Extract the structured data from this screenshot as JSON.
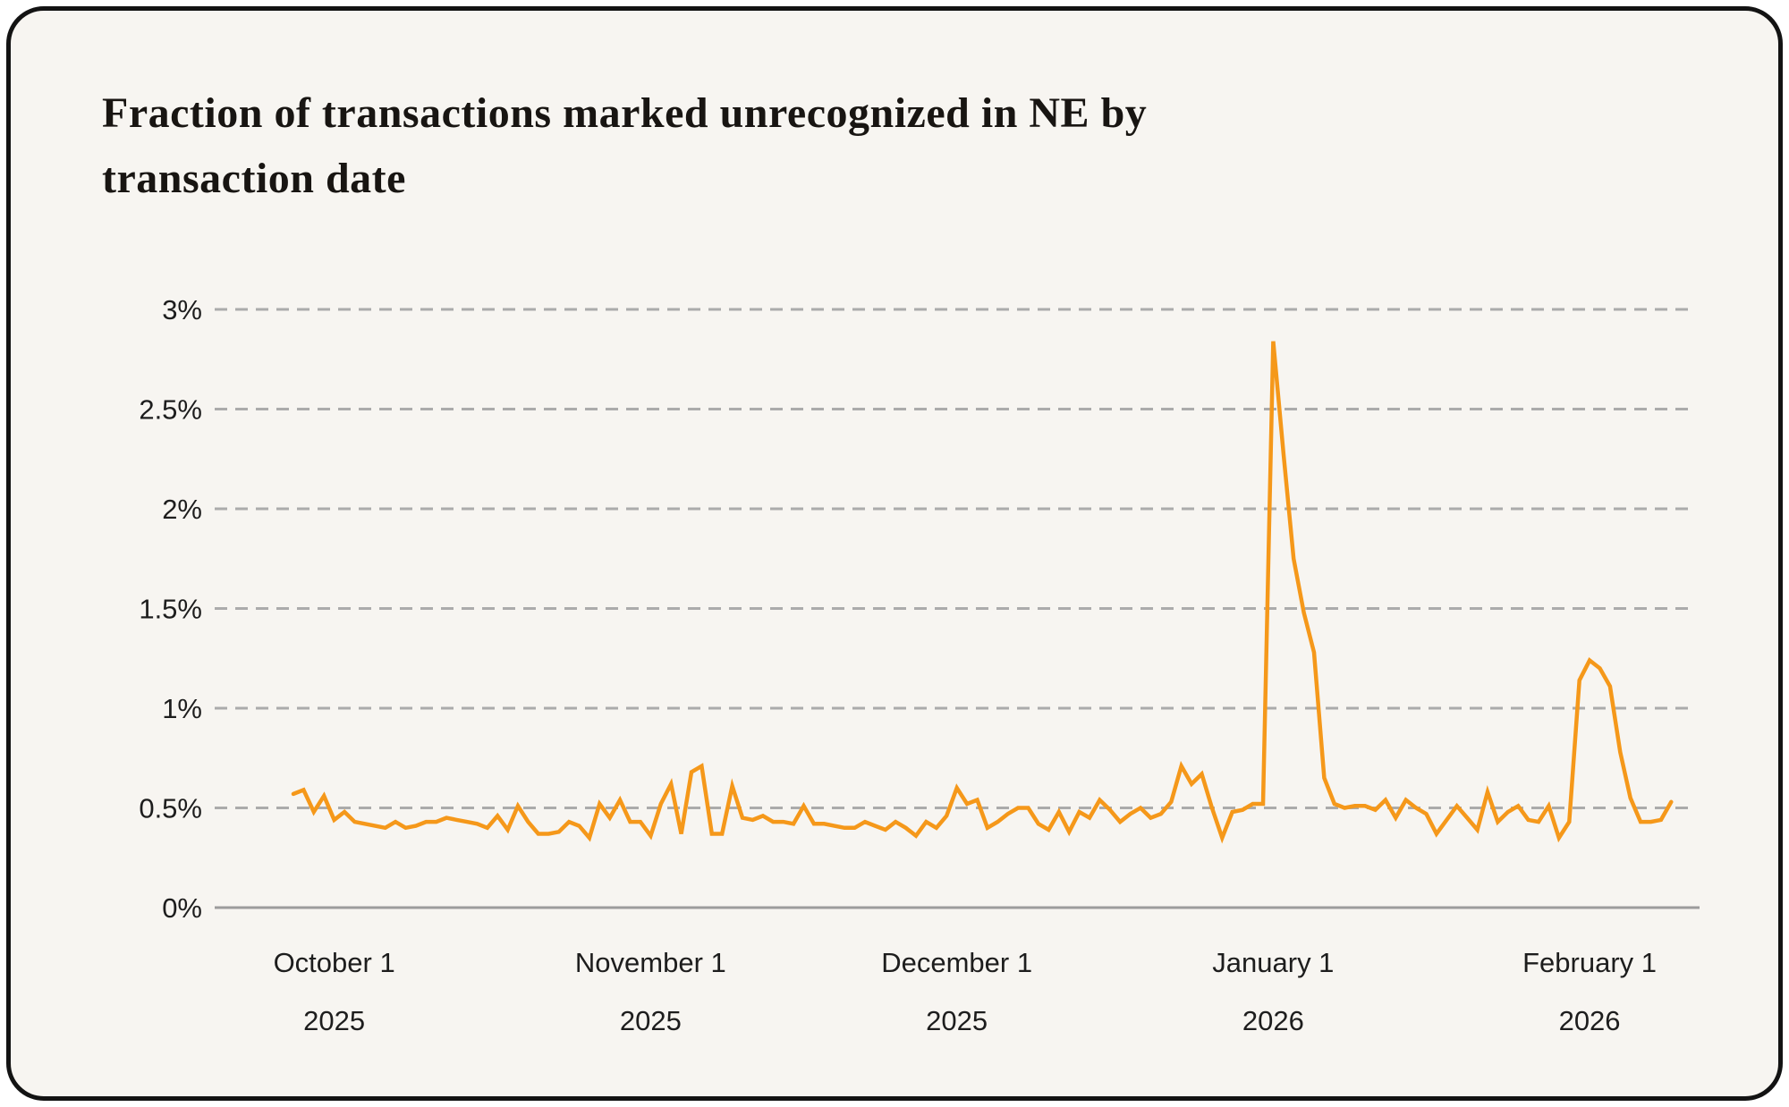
{
  "card": {
    "title_line1": "Fraction of transactions marked unrecognized in NE by",
    "title_line2": "transaction date"
  },
  "colors": {
    "page_bg": "#FFFFFF",
    "card_bg": "#F7F5F1",
    "card_border": "#131313",
    "title_text": "#181512",
    "tick_text": "#1D1D1D",
    "grid_dashed": "#ABABAB",
    "axis_solid": "#9C9C9C",
    "line": "#F5981A"
  },
  "chart_data": {
    "type": "line",
    "title": "Fraction of transactions marked unrecognized in NE by transaction date",
    "unit": "%",
    "grid": "horizontal dashed, zero axis solid",
    "legend": "none",
    "ylim": [
      0,
      3.1
    ],
    "y_ticks": [
      {
        "value": 0,
        "label": "0%"
      },
      {
        "value": 0.5,
        "label": "0.5%"
      },
      {
        "value": 1,
        "label": "1%"
      },
      {
        "value": 1.5,
        "label": "1.5%"
      },
      {
        "value": 2,
        "label": "2%"
      },
      {
        "value": 2.5,
        "label": "2.5%"
      },
      {
        "value": 3,
        "label": "3%"
      }
    ],
    "x_ticks": [
      {
        "day_index": 4,
        "month_label": "October 1",
        "year_label": "2025"
      },
      {
        "day_index": 35,
        "month_label": "November 1",
        "year_label": "2025"
      },
      {
        "day_index": 65,
        "month_label": "December 1",
        "year_label": "2025"
      },
      {
        "day_index": 96,
        "month_label": "January 1",
        "year_label": "2026"
      },
      {
        "day_index": 127,
        "month_label": "February 1",
        "year_label": "2026"
      }
    ],
    "series": [
      {
        "name": "fraction of transactions marked unrecognized",
        "cadence": "daily",
        "values": [
          0.57,
          0.59,
          0.48,
          0.56,
          0.44,
          0.48,
          0.43,
          0.42,
          0.41,
          0.4,
          0.43,
          0.4,
          0.41,
          0.43,
          0.43,
          0.45,
          0.44,
          0.43,
          0.42,
          0.4,
          0.46,
          0.39,
          0.51,
          0.43,
          0.37,
          0.37,
          0.38,
          0.43,
          0.41,
          0.35,
          0.52,
          0.45,
          0.54,
          0.43,
          0.43,
          0.36,
          0.52,
          0.62,
          0.37,
          0.68,
          0.71,
          0.37,
          0.37,
          0.61,
          0.45,
          0.44,
          0.46,
          0.43,
          0.43,
          0.42,
          0.51,
          0.42,
          0.42,
          0.41,
          0.4,
          0.4,
          0.43,
          0.41,
          0.39,
          0.43,
          0.4,
          0.36,
          0.43,
          0.4,
          0.46,
          0.6,
          0.52,
          0.54,
          0.4,
          0.43,
          0.47,
          0.5,
          0.5,
          0.42,
          0.39,
          0.48,
          0.38,
          0.48,
          0.45,
          0.54,
          0.49,
          0.43,
          0.47,
          0.5,
          0.45,
          0.47,
          0.53,
          0.71,
          0.62,
          0.67,
          0.5,
          0.35,
          0.48,
          0.49,
          0.52,
          0.52,
          2.84,
          2.28,
          1.75,
          1.48,
          1.28,
          0.65,
          0.52,
          0.5,
          0.51,
          0.51,
          0.49,
          0.54,
          0.45,
          0.54,
          0.5,
          0.47,
          0.37,
          0.44,
          0.51,
          0.45,
          0.39,
          0.58,
          0.43,
          0.48,
          0.51,
          0.44,
          0.43,
          0.51,
          0.35,
          0.43,
          1.14,
          1.24,
          1.2,
          1.11,
          0.78,
          0.55,
          0.43,
          0.43,
          0.44,
          0.53
        ]
      }
    ]
  }
}
